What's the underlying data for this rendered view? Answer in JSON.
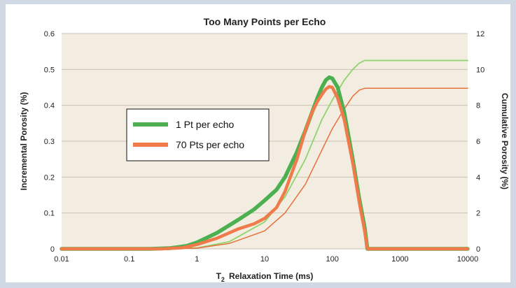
{
  "colors": {
    "page_background": "#cfd8e3",
    "plot_background": "#f2ede0",
    "grid": "#c8c2b4",
    "series_1": "#4caf50",
    "series_1_cumulative": "#8ed36b",
    "series_2": "#f07a4a",
    "series_2_cumulative": "#e8703c"
  },
  "chart_data": {
    "type": "line",
    "title": "Too Many Points per Echo",
    "xlabel": "T₂ Relaxation Time (ms)",
    "xlabel_parts": {
      "main": "T",
      "sub": "2",
      "rest": "Relaxation Time (ms)"
    },
    "ylabel": "Incremental Porosity (%)",
    "y2label": "Cumulative Porosity (%)",
    "xscale": "log",
    "xlim": [
      0.01,
      10000
    ],
    "ylim": [
      0,
      0.6
    ],
    "y2lim": [
      0,
      12
    ],
    "grid": true,
    "legend_position": "center-left",
    "x_ticks": [
      "0.01",
      "0.1",
      "1",
      "10",
      "100",
      "1000",
      "10000"
    ],
    "y_ticks": [
      "0",
      "0.1",
      "0.2",
      "0.3",
      "0.4",
      "0.5",
      "0.6"
    ],
    "y2_ticks": [
      "0",
      "2",
      "4",
      "6",
      "8",
      "10",
      "12"
    ],
    "legend": [
      "1 Pt per echo",
      "70 Pts per echo"
    ],
    "series": [
      {
        "name": "1 Pt per echo",
        "axis": "left",
        "x": [
          0.01,
          0.2,
          0.4,
          0.7,
          1,
          2,
          4,
          7,
          10,
          15,
          20,
          30,
          40,
          50,
          60,
          70,
          80,
          90,
          100,
          120,
          150,
          200,
          250,
          300,
          330,
          400,
          1000,
          10000
        ],
        "y": [
          0,
          0,
          0.002,
          0.008,
          0.018,
          0.045,
          0.08,
          0.11,
          0.135,
          0.165,
          0.2,
          0.27,
          0.33,
          0.38,
          0.42,
          0.45,
          0.47,
          0.478,
          0.475,
          0.45,
          0.38,
          0.25,
          0.14,
          0.06,
          0,
          0,
          0,
          0
        ]
      },
      {
        "name": "70 Pts per echo",
        "axis": "left",
        "x": [
          0.01,
          0.3,
          0.6,
          1,
          2,
          4,
          7,
          10,
          15,
          20,
          30,
          40,
          50,
          60,
          70,
          80,
          90,
          100,
          120,
          150,
          200,
          250,
          300,
          330,
          400,
          1000,
          10000
        ],
        "y": [
          0,
          0,
          0.003,
          0.012,
          0.03,
          0.055,
          0.07,
          0.085,
          0.115,
          0.16,
          0.25,
          0.33,
          0.38,
          0.41,
          0.43,
          0.445,
          0.452,
          0.45,
          0.42,
          0.36,
          0.24,
          0.13,
          0.05,
          0,
          0,
          0,
          0
        ]
      },
      {
        "name": "1 Pt per echo (cumulative)",
        "axis": "right",
        "x": [
          0.01,
          0.3,
          1,
          3,
          10,
          20,
          40,
          70,
          100,
          150,
          200,
          250,
          300,
          330,
          400,
          1000,
          10000
        ],
        "y": [
          0,
          0,
          0.05,
          0.4,
          1.5,
          2.9,
          5.0,
          7.2,
          8.3,
          9.4,
          10.0,
          10.35,
          10.5,
          10.5,
          10.5,
          10.5,
          10.5
        ]
      },
      {
        "name": "70 Pts per echo (cumulative)",
        "axis": "right",
        "x": [
          0.01,
          0.3,
          1,
          3,
          10,
          20,
          40,
          70,
          100,
          150,
          200,
          250,
          300,
          330,
          400,
          1000,
          10000
        ],
        "y": [
          0,
          0,
          0.04,
          0.3,
          1.0,
          2.0,
          3.6,
          5.5,
          6.7,
          7.8,
          8.5,
          8.85,
          8.95,
          8.95,
          8.95,
          8.95,
          8.95
        ]
      }
    ]
  }
}
